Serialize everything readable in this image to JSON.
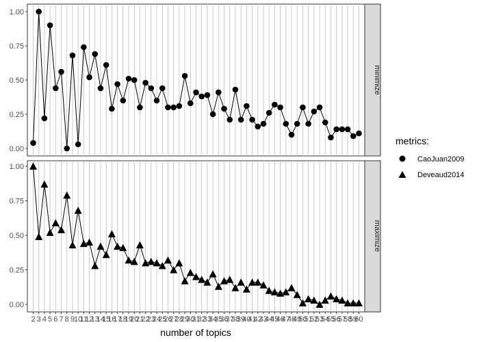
{
  "chart_data": {
    "type": "line",
    "xlabel": "number of topics",
    "x": [
      2,
      3,
      4,
      5,
      6,
      7,
      8,
      9,
      10,
      11,
      12,
      13,
      14,
      15,
      16,
      17,
      18,
      19,
      20,
      21,
      22,
      23,
      24,
      25,
      26,
      27,
      28,
      29,
      30,
      31,
      32,
      33,
      34,
      35,
      36,
      37,
      38,
      39,
      40,
      41,
      42,
      43,
      44,
      45,
      46,
      47,
      48,
      49,
      50,
      51,
      52,
      53,
      54,
      55,
      56,
      57,
      58,
      59,
      60
    ],
    "x_tick_labels": [
      "2",
      "3",
      "4",
      "5",
      "6",
      "7",
      "8",
      "9",
      "10",
      "11",
      "12",
      "13",
      "14",
      "15",
      "16",
      "17",
      "18",
      "19",
      "20",
      "21",
      "22",
      "23",
      "24",
      "25",
      "26",
      "27",
      "28",
      "29",
      "30",
      "31",
      "32",
      "33",
      "34",
      "35",
      "36",
      "37",
      "38",
      "39",
      "40",
      "41",
      "42",
      "43",
      "44",
      "45",
      "46",
      "47",
      "48",
      "49",
      "50",
      "51",
      "52",
      "53",
      "54",
      "55",
      "56",
      "57",
      "58",
      "59",
      "60"
    ],
    "legend": {
      "title": "metrics:",
      "placement": "right",
      "entries": [
        {
          "label": "CaoJuan2009",
          "shape": "circle"
        },
        {
          "label": "Deveaud2014",
          "shape": "triangle"
        }
      ]
    },
    "panels": [
      {
        "strip": "minimize",
        "ylim": [
          0,
          1
        ],
        "y_ticks": [
          "0.00",
          "0.25",
          "0.50",
          "0.75",
          "1.00"
        ],
        "series": {
          "name": "CaoJuan2009",
          "values": [
            0.04,
            1.0,
            0.22,
            0.9,
            0.44,
            0.56,
            0.0,
            0.68,
            0.03,
            0.74,
            0.52,
            0.69,
            0.44,
            0.61,
            0.29,
            0.47,
            0.35,
            0.51,
            0.5,
            0.3,
            0.48,
            0.44,
            0.35,
            0.44,
            0.3,
            0.3,
            0.31,
            0.53,
            0.33,
            0.41,
            0.38,
            0.39,
            0.25,
            0.41,
            0.29,
            0.21,
            0.43,
            0.21,
            0.31,
            0.21,
            0.16,
            0.18,
            0.26,
            0.32,
            0.3,
            0.18,
            0.1,
            0.18,
            0.3,
            0.18,
            0.27,
            0.3,
            0.19,
            0.08,
            0.14,
            0.14,
            0.14,
            0.09,
            0.11
          ]
        }
      },
      {
        "strip": "maximize",
        "ylim": [
          0,
          1
        ],
        "y_ticks": [
          "0.00",
          "0.25",
          "0.50",
          "0.75",
          "1.00"
        ],
        "series": {
          "name": "Deveaud2014",
          "values": [
            1.0,
            0.49,
            0.87,
            0.52,
            0.59,
            0.54,
            0.79,
            0.43,
            0.68,
            0.44,
            0.45,
            0.28,
            0.42,
            0.36,
            0.51,
            0.42,
            0.41,
            0.32,
            0.31,
            0.43,
            0.3,
            0.31,
            0.3,
            0.28,
            0.32,
            0.25,
            0.3,
            0.17,
            0.23,
            0.2,
            0.18,
            0.16,
            0.22,
            0.13,
            0.17,
            0.18,
            0.12,
            0.16,
            0.11,
            0.16,
            0.16,
            0.14,
            0.1,
            0.09,
            0.08,
            0.09,
            0.12,
            0.07,
            0.01,
            0.04,
            0.03,
            0.0,
            0.03,
            0.06,
            0.04,
            0.03,
            0.01,
            0.01,
            0.01
          ]
        }
      }
    ]
  }
}
